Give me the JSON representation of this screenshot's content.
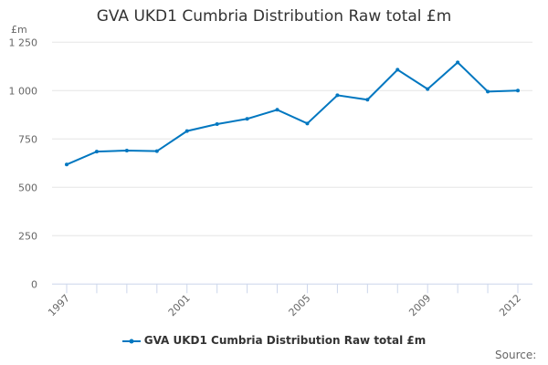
{
  "chart_data": {
    "type": "line",
    "title": "GVA UKD1 Cumbria Distribution Raw total £m",
    "ylabel": "£m",
    "xlabel": "",
    "x": [
      1997,
      1998,
      1999,
      2000,
      2001,
      2002,
      2003,
      2004,
      2005,
      2006,
      2007,
      2008,
      2009,
      2010,
      2011,
      2012
    ],
    "series": [
      {
        "name": "GVA UKD1 Cumbria Distribution Raw total £m",
        "values": [
          618,
          685,
          690,
          687,
          791,
          827,
          854,
          901,
          830,
          976,
          953,
          1108,
          1008,
          1146,
          995,
          1000
        ],
        "color": "#0077c0"
      }
    ],
    "xticks": [
      "1997",
      "2001",
      "2005",
      "2009",
      "2012"
    ],
    "yticks": [
      "0",
      "250",
      "500",
      "750",
      "1 000",
      "1 250"
    ],
    "ylim": [
      0,
      1250
    ],
    "grid": true,
    "legend": "bottom"
  },
  "source_label": "Source:"
}
